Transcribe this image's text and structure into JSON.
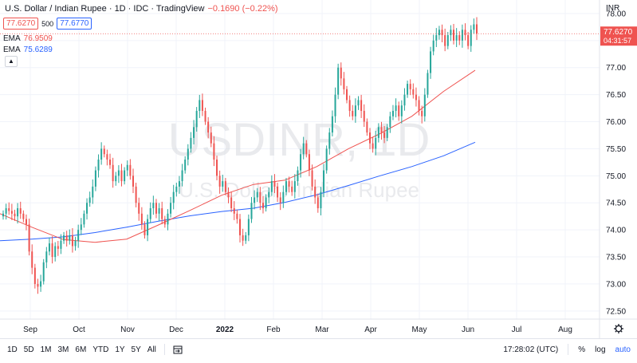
{
  "legend": {
    "title": "U.S. Dollar / Indian Rupee · 1D · IDC · TradingView",
    "change": "−0.1690 (−0.22%)",
    "bid": "77.6270",
    "spread": "500",
    "ask": "77.6770",
    "ema1_label": "EMA",
    "ema1_value": "76.9509",
    "ema2_label": "EMA",
    "ema2_value": "75.6289",
    "collapse_icon": "chevron-up-icon"
  },
  "watermark": {
    "symbol": "USDINR, 1D",
    "name": "U.S. Dollar / Indian Rupee"
  },
  "price_scale": {
    "currency": "INR",
    "last_price": "77.6270",
    "countdown": "04:31:57",
    "settings_icon": "gear-icon"
  },
  "bottom_bar": {
    "ranges": [
      "1D",
      "5D",
      "1M",
      "3M",
      "6M",
      "YTD",
      "1Y",
      "5Y",
      "All"
    ],
    "goto_icon": "calendar-goto-icon",
    "clock": "17:28:02 (UTC)",
    "percent": "%",
    "log": "log",
    "auto": "auto"
  },
  "colors": {
    "up": "#26a69a",
    "down": "#ef5350",
    "ema1": "#ef5350",
    "ema2": "#2962ff"
  },
  "chart_data": {
    "type": "candlestick",
    "y_ticks": [
      72.5,
      73.0,
      73.5,
      74.0,
      74.5,
      75.0,
      75.5,
      76.0,
      76.5,
      77.0,
      77.5,
      78.0
    ],
    "ylim": [
      72.35,
      78.25
    ],
    "x_ticks": [
      "Sep",
      "Oct",
      "Nov",
      "Dec",
      "2022",
      "Feb",
      "Mar",
      "Apr",
      "May",
      "Jun",
      "Jul",
      "Aug"
    ],
    "last_price": 77.627,
    "close": [
      74.3,
      74.4,
      74.35,
      74.3,
      74.25,
      74.4,
      74.3,
      74.2,
      74.1,
      73.6,
      73.3,
      73.0,
      72.95,
      73.05,
      73.4,
      73.6,
      73.75,
      73.5,
      73.7,
      73.65,
      73.8,
      73.9,
      73.8,
      73.9,
      73.7,
      73.8,
      74.0,
      74.1,
      74.3,
      74.5,
      74.6,
      74.8,
      75.1,
      75.3,
      75.5,
      75.4,
      75.3,
      75.2,
      74.9,
      75.0,
      75.1,
      74.9,
      75.1,
      75.2,
      75.0,
      74.8,
      74.5,
      74.3,
      74.1,
      73.9,
      74.2,
      74.4,
      74.5,
      74.3,
      74.4,
      74.2,
      74.1,
      74.3,
      74.5,
      74.7,
      74.8,
      74.9,
      75.1,
      75.3,
      75.5,
      75.7,
      75.9,
      76.2,
      76.4,
      76.2,
      76.0,
      75.8,
      75.6,
      75.3,
      75.0,
      74.8,
      74.9,
      74.7,
      74.6,
      74.4,
      74.3,
      74.2,
      73.9,
      73.8,
      73.9,
      74.2,
      74.5,
      74.6,
      74.7,
      74.5,
      74.4,
      74.6,
      74.7,
      74.9,
      74.8,
      74.6,
      74.5,
      74.7,
      74.9,
      74.8,
      74.7,
      74.9,
      75.1,
      75.4,
      75.6,
      75.4,
      75.1,
      74.8,
      74.6,
      74.4,
      74.7,
      75.1,
      75.5,
      75.8,
      76.1,
      76.5,
      77.0,
      76.8,
      76.6,
      76.4,
      76.2,
      76.1,
      76.3,
      76.4,
      76.2,
      76.0,
      75.8,
      75.6,
      75.5,
      75.7,
      75.9,
      75.8,
      75.7,
      75.9,
      76.1,
      76.2,
      76.3,
      76.1,
      76.3,
      76.5,
      76.7,
      76.6,
      76.5,
      76.4,
      76.2,
      76.1,
      76.5,
      76.9,
      77.3,
      77.5,
      77.6,
      77.7,
      77.6,
      77.4,
      77.6,
      77.7,
      77.5,
      77.6,
      77.5,
      77.7,
      77.6,
      77.4,
      77.7,
      77.8,
      77.63
    ],
    "ema1": [
      74.3,
      74.05,
      73.82,
      73.77,
      73.83,
      74.09,
      74.36,
      74.64,
      74.84,
      74.92,
      75.17,
      75.5,
      75.78,
      76.1,
      76.56,
      76.95
    ],
    "ema2": [
      73.8,
      73.83,
      73.87,
      73.95,
      74.05,
      74.16,
      74.26,
      74.34,
      74.4,
      74.51,
      74.65,
      74.82,
      75.0,
      75.17,
      75.37,
      75.62
    ]
  }
}
